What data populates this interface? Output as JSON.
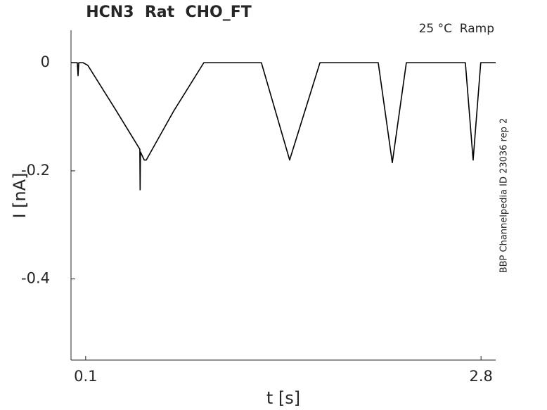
{
  "chart_data": {
    "type": "line",
    "title": "HCN3  Rat  CHO_FT",
    "annotation": "25 °C  Ramp",
    "side_note": "BBP Channelpedia ID 23036 rep 2",
    "x_label": "t [s]",
    "y_label": "I [nA]",
    "x": [
      0,
      0.043,
      0.048,
      0.053,
      0.082,
      0.115,
      0.3,
      0.47,
      0.472,
      0.474,
      0.5,
      0.514,
      0.7,
      0.907,
      1.1,
      1.3,
      1.493,
      1.7,
      1.9,
      2.098,
      2.194,
      2.29,
      2.5,
      2.693,
      2.746,
      2.798,
      2.9
    ],
    "values": [
      0,
      0,
      -0.024,
      0,
      0,
      -0.005,
      -0.085,
      -0.16,
      -0.235,
      -0.165,
      -0.18,
      -0.18,
      -0.09,
      0,
      0,
      0,
      -0.18,
      0,
      0,
      0,
      -0.185,
      0,
      0,
      0,
      -0.18,
      0,
      0
    ],
    "color": "#000000",
    "xlim": [
      0,
      2.9
    ],
    "xticks": [
      0.1,
      2.8
    ],
    "ylim": [
      -0.55,
      0.06
    ],
    "yticks": [
      0,
      -0.2,
      -0.4
    ]
  }
}
